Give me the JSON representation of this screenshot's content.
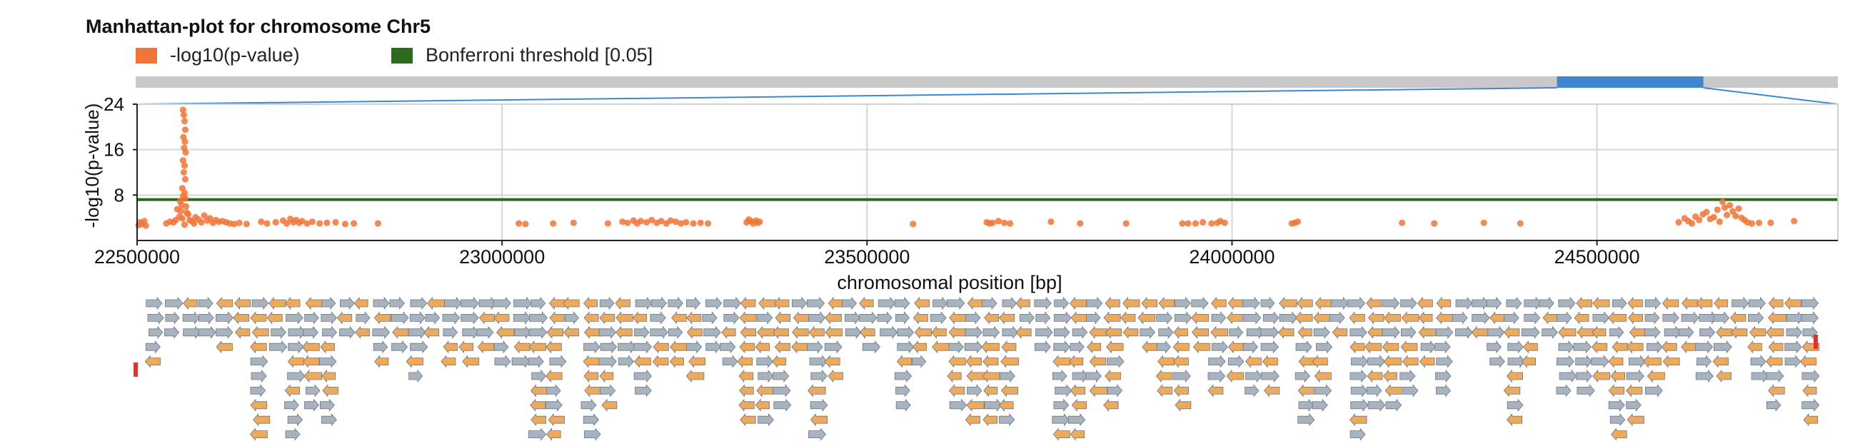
{
  "chart_data": {
    "type": "scatter",
    "title": "Manhattan-plot for chromosome Chr5",
    "xlabel": "chromosomal position [bp]",
    "ylabel": "-log10(p-value)",
    "xlim": [
      22500000,
      24830000
    ],
    "ylim": [
      0,
      24
    ],
    "x_ticks": [
      "22500000",
      "23000000",
      "23500000",
      "24000000",
      "24500000"
    ],
    "y_ticks": [
      "24",
      "16",
      "8"
    ],
    "grid": true,
    "legend": [
      {
        "name": "-log10(p-value)",
        "color": "#f07537"
      },
      {
        "name": "Bonferroni threshold [0.05]",
        "color": "#2d6a1e"
      }
    ],
    "bonferroni_threshold": 7.2,
    "overview_window": [
      0.835,
      0.921
    ],
    "colors": {
      "points": "#f07537",
      "threshold": "#2d6a1e",
      "track": "#c8c8c8",
      "window": "#3d87d0",
      "gene_forward": "#a7b4bf",
      "gene_reverse": "#eda95c",
      "marker": "#e0342a"
    },
    "series": [
      {
        "name": "-log10(p-value)",
        "points": [
          [
            22502000,
            2.7
          ],
          [
            22504000,
            3.2
          ],
          [
            22507000,
            2.9
          ],
          [
            22510000,
            3.4
          ],
          [
            22512000,
            2.6
          ],
          [
            22563000,
            23.0
          ],
          [
            22564000,
            22.1
          ],
          [
            22565000,
            21.0
          ],
          [
            22566000,
            19.5
          ],
          [
            22563500,
            18.2
          ],
          [
            22565500,
            17.4
          ],
          [
            22564500,
            16.3
          ],
          [
            22566500,
            15.5
          ],
          [
            22563000,
            14.1
          ],
          [
            22565000,
            13.2
          ],
          [
            22564000,
            12.0
          ],
          [
            22566000,
            10.8
          ],
          [
            22562000,
            9.2
          ],
          [
            22565000,
            8.4
          ],
          [
            22563000,
            7.8
          ],
          [
            22566000,
            7.4
          ],
          [
            22559000,
            6.9
          ],
          [
            22561000,
            6.3
          ],
          [
            22567000,
            6.0
          ],
          [
            22555000,
            5.5
          ],
          [
            22560000,
            5.2
          ],
          [
            22568000,
            4.9
          ],
          [
            22570000,
            4.6
          ],
          [
            22558000,
            4.2
          ],
          [
            22562000,
            3.9
          ],
          [
            22572000,
            3.6
          ],
          [
            22575000,
            3.4
          ],
          [
            22550000,
            3.2
          ],
          [
            22578000,
            3.0
          ],
          [
            22565000,
            2.8
          ],
          [
            22545000,
            3.3
          ],
          [
            22540000,
            3.0
          ],
          [
            22553000,
            3.6
          ],
          [
            22580000,
            4.1
          ],
          [
            22584000,
            3.7
          ],
          [
            22588000,
            3.2
          ],
          [
            22592000,
            4.4
          ],
          [
            22596000,
            3.5
          ],
          [
            22600000,
            3.9
          ],
          [
            22604000,
            3.1
          ],
          [
            22608000,
            3.6
          ],
          [
            22612000,
            3.3
          ],
          [
            22617000,
            3.4
          ],
          [
            22622000,
            3.2
          ],
          [
            22627000,
            3.0
          ],
          [
            22633000,
            2.9
          ],
          [
            22640000,
            3.1
          ],
          [
            22650000,
            2.9
          ],
          [
            22670000,
            3.3
          ],
          [
            22678000,
            3.0
          ],
          [
            22690000,
            3.2
          ],
          [
            22700000,
            3.5
          ],
          [
            22705000,
            3.0
          ],
          [
            22710000,
            3.8
          ],
          [
            22714000,
            3.2
          ],
          [
            22718000,
            3.6
          ],
          [
            22722000,
            3.1
          ],
          [
            22726000,
            3.4
          ],
          [
            22733000,
            3.0
          ],
          [
            22740000,
            3.3
          ],
          [
            22750000,
            3.0
          ],
          [
            22760000,
            3.1
          ],
          [
            22772000,
            3.2
          ],
          [
            22785000,
            2.9
          ],
          [
            22797000,
            3.0
          ],
          [
            22830000,
            3.0
          ],
          [
            23023000,
            3.0
          ],
          [
            23032000,
            2.9
          ],
          [
            23070000,
            3.0
          ],
          [
            23098000,
            3.1
          ],
          [
            23145000,
            3.0
          ],
          [
            23165000,
            3.3
          ],
          [
            23172000,
            3.1
          ],
          [
            23180000,
            3.5
          ],
          [
            23185000,
            3.0
          ],
          [
            23190000,
            3.4
          ],
          [
            23198000,
            3.2
          ],
          [
            23205000,
            3.6
          ],
          [
            23212000,
            3.1
          ],
          [
            23218000,
            3.4
          ],
          [
            23225000,
            3.0
          ],
          [
            23231000,
            3.5
          ],
          [
            23238000,
            3.3
          ],
          [
            23245000,
            3.0
          ],
          [
            23252000,
            3.2
          ],
          [
            23262000,
            3.0
          ],
          [
            23272000,
            3.1
          ],
          [
            23282000,
            3.0
          ],
          [
            23335000,
            3.2
          ],
          [
            23338000,
            3.7
          ],
          [
            23341000,
            3.4
          ],
          [
            23344000,
            3.0
          ],
          [
            23348000,
            3.5
          ],
          [
            23350000,
            3.1
          ],
          [
            23353000,
            3.3
          ],
          [
            23563000,
            2.9
          ],
          [
            23664000,
            3.2
          ],
          [
            23668000,
            3.0
          ],
          [
            23672000,
            3.1
          ],
          [
            23680000,
            3.4
          ],
          [
            23688000,
            3.1
          ],
          [
            23696000,
            3.0
          ],
          [
            23752000,
            3.3
          ],
          [
            23792000,
            3.0
          ],
          [
            23855000,
            3.0
          ],
          [
            23932000,
            3.0
          ],
          [
            23940000,
            3.0
          ],
          [
            23950000,
            3.0
          ],
          [
            23960000,
            3.2
          ],
          [
            23972000,
            3.0
          ],
          [
            23980000,
            3.1
          ],
          [
            23984000,
            3.4
          ],
          [
            23990000,
            3.1
          ],
          [
            24082000,
            3.0
          ],
          [
            24086000,
            3.1
          ],
          [
            24090000,
            3.3
          ],
          [
            24233000,
            3.1
          ],
          [
            24277000,
            3.0
          ],
          [
            24345000,
            3.1
          ],
          [
            24395000,
            3.0
          ],
          [
            24612000,
            3.2
          ],
          [
            24620000,
            3.9
          ],
          [
            24625000,
            3.4
          ],
          [
            24630000,
            3.0
          ],
          [
            24635000,
            4.2
          ],
          [
            24640000,
            3.6
          ],
          [
            24645000,
            4.6
          ],
          [
            24650000,
            5.0
          ],
          [
            24655000,
            3.8
          ],
          [
            24660000,
            4.1
          ],
          [
            24665000,
            5.4
          ],
          [
            24668000,
            3.3
          ],
          [
            24672000,
            6.8
          ],
          [
            24675000,
            5.8
          ],
          [
            24678000,
            4.5
          ],
          [
            24682000,
            6.2
          ],
          [
            24686000,
            5.1
          ],
          [
            24690000,
            4.3
          ],
          [
            24694000,
            5.6
          ],
          [
            24698000,
            4.0
          ],
          [
            24702000,
            3.6
          ],
          [
            24706000,
            3.2
          ],
          [
            24712000,
            3.0
          ],
          [
            24722000,
            3.1
          ],
          [
            24738000,
            3.1
          ],
          [
            24770000,
            3.4
          ]
        ]
      }
    ]
  }
}
